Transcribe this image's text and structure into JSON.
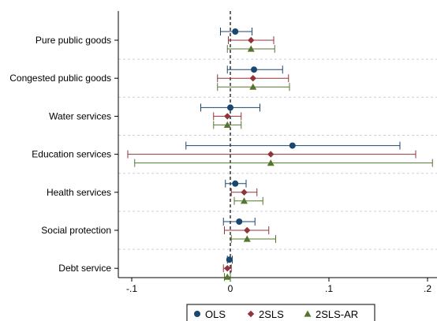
{
  "chart_data": {
    "type": "scatter",
    "subtype": "coefficient-plot-horizontal",
    "categories": [
      "Pure public goods",
      "Congested public goods",
      "Water services",
      "Education services",
      "Health services",
      "Social protection",
      "Debt service"
    ],
    "series": [
      {
        "name": "OLS",
        "marker": "circle",
        "color": "#1a476f",
        "points": [
          {
            "est": 0.005,
            "lo": -0.01,
            "hi": 0.022
          },
          {
            "est": 0.024,
            "lo": -0.003,
            "hi": 0.053
          },
          {
            "est": 0.0,
            "lo": -0.03,
            "hi": 0.03
          },
          {
            "est": 0.063,
            "lo": -0.045,
            "hi": 0.172
          },
          {
            "est": 0.005,
            "lo": -0.005,
            "hi": 0.016
          },
          {
            "est": 0.009,
            "lo": -0.007,
            "hi": 0.025
          },
          {
            "est": -0.001,
            "lo": -0.003,
            "hi": 0.002
          }
        ]
      },
      {
        "name": "2SLS",
        "marker": "diamond",
        "color": "#90353b",
        "points": [
          {
            "est": 0.021,
            "lo": -0.002,
            "hi": 0.044
          },
          {
            "est": 0.023,
            "lo": -0.013,
            "hi": 0.059
          },
          {
            "est": -0.003,
            "lo": -0.017,
            "hi": 0.011
          },
          {
            "est": 0.041,
            "lo": -0.104,
            "hi": 0.188
          },
          {
            "est": 0.014,
            "lo": 0.001,
            "hi": 0.027
          },
          {
            "est": 0.017,
            "lo": -0.006,
            "hi": 0.039
          },
          {
            "est": -0.003,
            "lo": -0.007,
            "hi": 0.001
          }
        ]
      },
      {
        "name": "2SLS-AR",
        "marker": "triangle",
        "color": "#55752f",
        "points": [
          {
            "est": 0.021,
            "lo": -0.003,
            "hi": 0.045
          },
          {
            "est": 0.023,
            "lo": -0.013,
            "hi": 0.06
          },
          {
            "est": -0.003,
            "lo": -0.017,
            "hi": 0.011
          },
          {
            "est": 0.041,
            "lo": -0.097,
            "hi": 0.205
          },
          {
            "est": 0.014,
            "lo": 0.004,
            "hi": 0.033
          },
          {
            "est": 0.017,
            "lo": 0.001,
            "hi": 0.046
          },
          {
            "est": -0.003,
            "lo": -0.006,
            "hi": 0.0
          }
        ]
      }
    ],
    "xticks": [
      -0.1,
      0,
      0.1,
      0.2
    ],
    "xtick_labels": [
      "-.1",
      "0",
      ".1",
      ".2"
    ],
    "xlim": [
      -0.112,
      0.205
    ],
    "reference_line": 0,
    "category_separators": true,
    "legend_position": "bottom",
    "xlabel": "",
    "ylabel": "",
    "title": ""
  }
}
